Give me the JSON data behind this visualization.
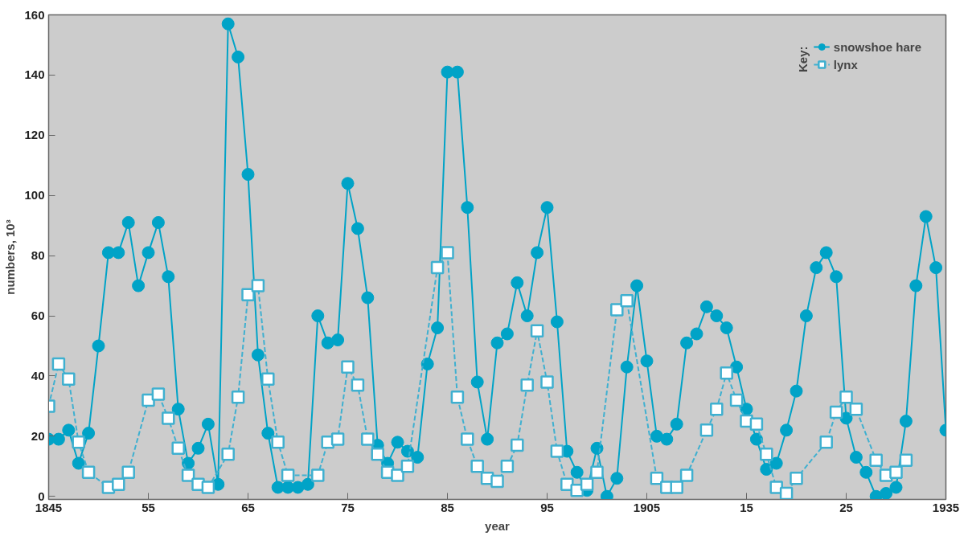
{
  "chart_data": {
    "type": "line",
    "xlabel": "year",
    "ylabel": "numbers, 10³",
    "legend_title": "Key:",
    "legend": "top right",
    "grid": false,
    "xlim": [
      1845,
      1935
    ],
    "xticks": [
      1845,
      {
        "value": 1855,
        "label": "55"
      },
      {
        "value": 1865,
        "label": "65"
      },
      {
        "value": 1875,
        "label": "75"
      },
      {
        "value": 1885,
        "label": "85"
      },
      {
        "value": 1895,
        "label": "95"
      },
      1905,
      {
        "value": 1915,
        "label": "15"
      },
      {
        "value": 1925,
        "label": "25"
      },
      1935
    ],
    "ylim": [
      -1,
      160
    ],
    "yticks": [
      0,
      20,
      40,
      60,
      80,
      100,
      120,
      140,
      160
    ],
    "series": [
      {
        "name": "snowshoe hare",
        "color": "#00a3c7",
        "marker": "circle",
        "line_style": "solid",
        "x": [
          1845,
          1846,
          1847,
          1848,
          1849,
          1850,
          1851,
          1852,
          1853,
          1854,
          1855,
          1856,
          1857,
          1858,
          1859,
          1860,
          1861,
          1862,
          1863,
          1864,
          1865,
          1866,
          1867,
          1868,
          1869,
          1870,
          1871,
          1872,
          1873,
          1874,
          1875,
          1876,
          1877,
          1878,
          1879,
          1880,
          1881,
          1882,
          1883,
          1884,
          1885,
          1886,
          1887,
          1888,
          1889,
          1890,
          1891,
          1892,
          1893,
          1894,
          1895,
          1896,
          1897,
          1898,
          1899,
          1900,
          1901,
          1902,
          1903,
          1904,
          1905,
          1906,
          1907,
          1908,
          1909,
          1910,
          1911,
          1912,
          1913,
          1914,
          1915,
          1916,
          1917,
          1918,
          1919,
          1920,
          1921,
          1922,
          1923,
          1924,
          1925,
          1926,
          1927,
          1928,
          1929,
          1930,
          1931,
          1932,
          1933,
          1934,
          1935
        ],
        "values": [
          19,
          19,
          22,
          11,
          21,
          50,
          81,
          81,
          91,
          70,
          81,
          91,
          73,
          29,
          11,
          16,
          24,
          4,
          157,
          146,
          107,
          47,
          21,
          3,
          3,
          3,
          4,
          60,
          51,
          52,
          104,
          89,
          66,
          17,
          11,
          18,
          15,
          13,
          44,
          56,
          141,
          141,
          96,
          38,
          19,
          51,
          54,
          71,
          60,
          81,
          96,
          58,
          15,
          8,
          2,
          16,
          0,
          6,
          43,
          70,
          45,
          20,
          19,
          24,
          51,
          54,
          63,
          60,
          56,
          43,
          29,
          19,
          9,
          11,
          22,
          35,
          60,
          76,
          81,
          73,
          26,
          13,
          8,
          0,
          1,
          3,
          25,
          70,
          93,
          76,
          22
        ]
      },
      {
        "name": "lynx",
        "color": "#3fb0d0",
        "marker": "square",
        "line_style": "dashed",
        "x": [
          1845,
          1846,
          1847,
          1848,
          1849,
          1851,
          1852,
          1853,
          1855,
          1856,
          1857,
          1858,
          1859,
          1860,
          1861,
          1863,
          1864,
          1865,
          1866,
          1867,
          1868,
          1869,
          1872,
          1873,
          1874,
          1875,
          1876,
          1877,
          1878,
          1879,
          1880,
          1881,
          1884,
          1885,
          1886,
          1887,
          1888,
          1889,
          1890,
          1891,
          1892,
          1893,
          1894,
          1895,
          1896,
          1897,
          1898,
          1899,
          1900,
          1902,
          1903,
          1906,
          1907,
          1908,
          1909,
          1911,
          1912,
          1913,
          1914,
          1915,
          1916,
          1917,
          1918,
          1919,
          1920,
          1923,
          1924,
          1925,
          1926,
          1928,
          1929,
          1930,
          1931
        ],
        "values": [
          30,
          44,
          39,
          18,
          8,
          3,
          4,
          8,
          32,
          34,
          26,
          16,
          7,
          4,
          3,
          14,
          33,
          67,
          70,
          39,
          18,
          7,
          7,
          18,
          19,
          43,
          37,
          19,
          14,
          8,
          7,
          10,
          76,
          81,
          33,
          19,
          10,
          6,
          5,
          10,
          17,
          37,
          55,
          38,
          15,
          4,
          2,
          4,
          8,
          62,
          65,
          6,
          3,
          3,
          7,
          22,
          29,
          41,
          32,
          25,
          24,
          14,
          3,
          1,
          6,
          18,
          28,
          33,
          29,
          12,
          7,
          8,
          12
        ]
      }
    ]
  }
}
